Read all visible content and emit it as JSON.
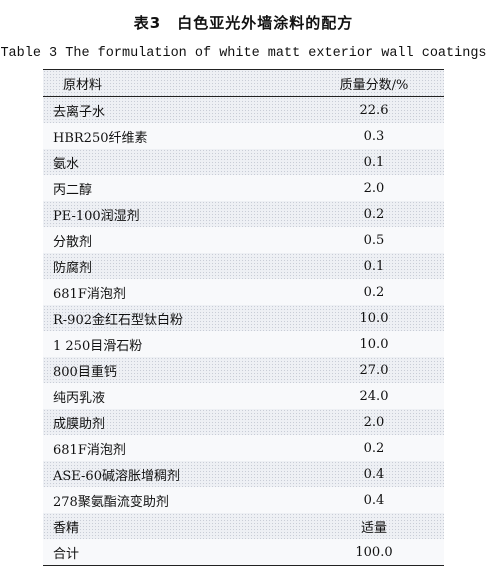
{
  "title_cn": "表3　白色亚光外墙涂料的配方",
  "title_en": "Table 3  The formulation of white matt exterior wall coatings",
  "table": {
    "headers": [
      "原材料",
      "质量分数/%"
    ],
    "rows": [
      [
        "去离子水",
        "22.6"
      ],
      [
        "HBR250纤维素",
        "0.3"
      ],
      [
        "氨水",
        "0.1"
      ],
      [
        "丙二醇",
        "2.0"
      ],
      [
        "PE-100润湿剂",
        "0.2"
      ],
      [
        "分散剂",
        "0.5"
      ],
      [
        "防腐剂",
        "0.1"
      ],
      [
        "681F消泡剂",
        "0.2"
      ],
      [
        "R-902金红石型钛白粉",
        "10.0"
      ],
      [
        "1 250目滑石粉",
        "10.0"
      ],
      [
        "800目重钙",
        "27.0"
      ],
      [
        "纯丙乳液",
        "24.0"
      ],
      [
        "成膜助剂",
        "2.0"
      ],
      [
        "681F消泡剂",
        "0.2"
      ],
      [
        "ASE-60碱溶胀增稠剂",
        "0.4"
      ],
      [
        "278聚氨酯流变助剂",
        "0.4"
      ],
      [
        "香精",
        "适量"
      ],
      [
        "合计",
        "100.0"
      ]
    ]
  }
}
